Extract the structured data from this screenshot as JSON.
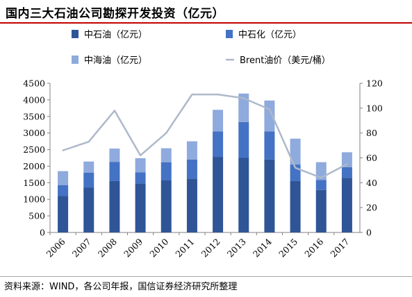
{
  "title": "国内三大石油公司勘探开发投资（亿元）",
  "source": "资料来源：WIND，各公司年报，国信证券经济研究所整理",
  "colors": {
    "sinopec": "#4472c4",
    "cnooc": "#8faadc",
    "petrochina": "#2f5597",
    "brent": "#adb9ca"
  },
  "chart_data": {
    "type": "bar",
    "stacked": true,
    "categories": [
      "2006",
      "2007",
      "2008",
      "2009",
      "2010",
      "2011",
      "2012",
      "2013",
      "2014",
      "2015",
      "2016",
      "2017"
    ],
    "series": [
      {
        "name": "中石油（亿元）",
        "axis": "left",
        "values": [
          1100,
          1350,
          1550,
          1480,
          1570,
          1620,
          2280,
          2250,
          2200,
          1550,
          1280,
          1650
        ]
      },
      {
        "name": "中石化（亿元）",
        "axis": "left",
        "values": [
          330,
          450,
          580,
          330,
          550,
          580,
          770,
          1080,
          850,
          500,
          300,
          320
        ]
      },
      {
        "name": "中海油（亿元）",
        "axis": "left",
        "values": [
          420,
          340,
          400,
          430,
          420,
          550,
          650,
          860,
          930,
          780,
          540,
          450
        ]
      },
      {
        "name": "Brent油价（美元/桶）",
        "type": "line",
        "axis": "right",
        "values": [
          66,
          73,
          98,
          62,
          80,
          111,
          111,
          108,
          99,
          52,
          44,
          55
        ]
      }
    ],
    "ylim": [
      0,
      4500
    ],
    "yticks": [
      "0",
      "500",
      "1000",
      "1500",
      "2000",
      "2500",
      "3000",
      "3500",
      "4000",
      "4500"
    ],
    "y2lim": [
      0,
      120
    ],
    "y2ticks": [
      "0",
      "20",
      "40",
      "60",
      "80",
      "100",
      "120"
    ],
    "legend_position": "top",
    "grid": false
  }
}
